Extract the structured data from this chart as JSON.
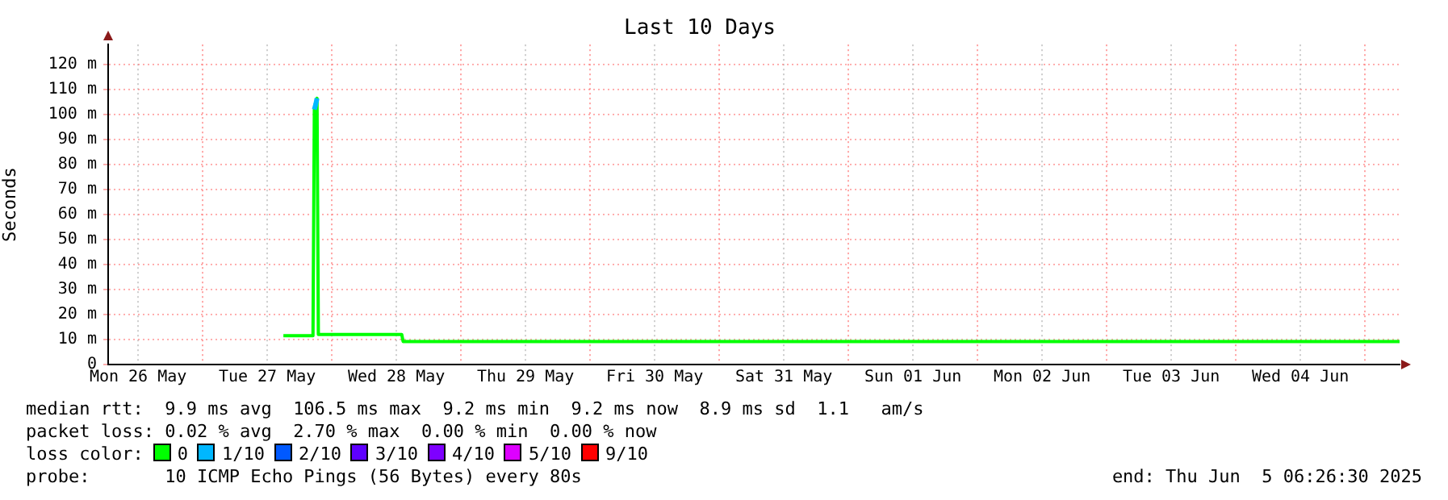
{
  "chart_data": {
    "type": "line",
    "title": "Last 10 Days",
    "ylabel": "Seconds",
    "legend_title": "loss color:",
    "legend": "bottom",
    "grid": true,
    "marker": "none",
    "line_style": "solid",
    "x": [
      "2025-05-27T15:00",
      "2025-05-27T18:00",
      "2025-05-27T20:30",
      "2025-05-27T20:45",
      "2025-05-27T21:00",
      "2025-05-27T21:15",
      "2025-05-27T21:30",
      "2025-05-28T03:00",
      "2025-05-28T08:00",
      "2025-05-28T13:00",
      "2025-05-28T13:15",
      "2025-05-29T12:00",
      "2025-05-30T12:00",
      "2025-05-31T12:00",
      "2025-06-01T12:00",
      "2025-06-02T12:00",
      "2025-06-03T12:00",
      "2025-06-04T12:00",
      "2025-06-05T06:26"
    ],
    "series": [
      {
        "name": "0",
        "color": "#00ff00",
        "values": [
          11.5,
          11.5,
          11.5,
          102,
          104,
          106.5,
          12,
          12,
          12,
          12,
          9.2,
          9.2,
          9.2,
          9.2,
          9.2,
          9.2,
          9.2,
          9.2,
          9.2
        ]
      },
      {
        "name": "1/10",
        "color": "#00b7ff",
        "values": [
          null,
          null,
          null,
          102,
          104,
          106.5,
          null,
          null,
          null,
          null,
          null,
          null,
          null,
          null,
          null,
          null,
          null,
          null,
          null
        ]
      },
      {
        "name": "2/10",
        "color": "#0059ff",
        "values": [
          null,
          null,
          null,
          null,
          null,
          null,
          null,
          null,
          null,
          null,
          null,
          null,
          null,
          null,
          null,
          null,
          null,
          null,
          null
        ]
      },
      {
        "name": "3/10",
        "color": "#5e00ff",
        "values": [
          null,
          null,
          null,
          null,
          null,
          null,
          null,
          null,
          null,
          null,
          null,
          null,
          null,
          null,
          null,
          null,
          null,
          null,
          null
        ]
      },
      {
        "name": "4/10",
        "color": "#7e00ff",
        "values": [
          null,
          null,
          null,
          null,
          null,
          null,
          null,
          null,
          null,
          null,
          null,
          null,
          null,
          null,
          null,
          null,
          null,
          null,
          null
        ]
      },
      {
        "name": "5/10",
        "color": "#dd00ff",
        "values": [
          null,
          null,
          null,
          null,
          null,
          null,
          null,
          null,
          null,
          null,
          null,
          null,
          null,
          null,
          null,
          null,
          null,
          null,
          null
        ]
      },
      {
        "name": "9/10",
        "color": "#ff0000",
        "values": [
          null,
          null,
          null,
          null,
          null,
          null,
          null,
          null,
          null,
          null,
          null,
          null,
          null,
          null,
          null,
          null,
          null,
          null,
          null
        ]
      }
    ],
    "xlim": [
      "2025-05-26T06:26",
      "2025-06-05T06:26"
    ],
    "xticks": [
      {
        "value": "2025-05-26T12:00",
        "label": "Mon 26 May"
      },
      {
        "value": "2025-05-27T00:00",
        "label": null
      },
      {
        "value": "2025-05-27T12:00",
        "label": "Tue 27 May"
      },
      {
        "value": "2025-05-28T00:00",
        "label": null
      },
      {
        "value": "2025-05-28T12:00",
        "label": "Wed 28 May"
      },
      {
        "value": "2025-05-29T00:00",
        "label": null
      },
      {
        "value": "2025-05-29T12:00",
        "label": "Thu 29 May"
      },
      {
        "value": "2025-05-30T00:00",
        "label": null
      },
      {
        "value": "2025-05-30T12:00",
        "label": "Fri 30 May"
      },
      {
        "value": "2025-05-31T00:00",
        "label": null
      },
      {
        "value": "2025-05-31T12:00",
        "label": "Sat 31 May"
      },
      {
        "value": "2025-06-01T00:00",
        "label": null
      },
      {
        "value": "2025-06-01T12:00",
        "label": "Sun 01 Jun"
      },
      {
        "value": "2025-06-02T00:00",
        "label": null
      },
      {
        "value": "2025-06-02T12:00",
        "label": "Mon 02 Jun"
      },
      {
        "value": "2025-06-03T00:00",
        "label": null
      },
      {
        "value": "2025-06-03T12:00",
        "label": "Tue 03 Jun"
      },
      {
        "value": "2025-06-04T00:00",
        "label": null
      },
      {
        "value": "2025-06-04T12:00",
        "label": "Wed 04 Jun"
      },
      {
        "value": "2025-06-05T00:00",
        "label": null
      }
    ],
    "ylim": [
      0,
      128
    ],
    "yticks": [
      0,
      {
        "value": 10,
        "label": "10 m"
      },
      {
        "value": 20,
        "label": "20 m"
      },
      {
        "value": 30,
        "label": "30 m"
      },
      {
        "value": 40,
        "label": "40 m"
      },
      {
        "value": 50,
        "label": "50 m"
      },
      {
        "value": 60,
        "label": "60 m"
      },
      {
        "value": 70,
        "label": "70 m"
      },
      {
        "value": 80,
        "label": "80 m"
      },
      {
        "value": 90,
        "label": "90 m"
      },
      {
        "value": 100,
        "label": "100 m"
      },
      {
        "value": 110,
        "label": "110 m"
      },
      {
        "value": 120,
        "label": "120 m"
      }
    ],
    "annotations": [
      "median rtt:  9.9 ms avg  106.5 ms max  9.2 ms min  9.2 ms now  8.9 ms sd  1.1   am/s",
      "packet loss: 0.02 % avg  2.70 % max  0.00 % min  0.00 % now",
      "probe:       10 ICMP Echo Pings (56 Bytes) every 80s",
      "end: Thu Jun  5 06:26:30 2025"
    ]
  }
}
